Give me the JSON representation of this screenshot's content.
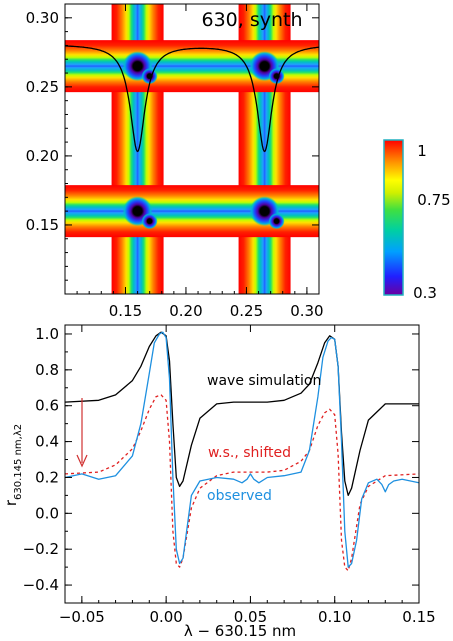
{
  "top_panel": {
    "label": "630, synth",
    "x_ticks": [
      "0.15",
      "0.20",
      "0.25",
      "0.30"
    ],
    "y_ticks": [
      "0.15",
      "0.20",
      "0.25",
      "0.30"
    ],
    "xlim": [
      0.1,
      0.31
    ],
    "ylim": [
      0.1,
      0.31
    ],
    "line_centers": [
      0.16,
      0.265
    ],
    "colors": {
      "red": "#ff0000",
      "yellow": "#ffff00",
      "green": "#00c080",
      "blue": "#2020ff",
      "black": "#000000"
    }
  },
  "colorbar": {
    "ticks": [
      "1",
      "0.75",
      "0.3"
    ],
    "range": [
      0.3,
      1.0
    ]
  },
  "chart_data": {
    "type": "line",
    "xlabel": "λ − 630.15 nm",
    "ylabel": "r",
    "ylabel_sub": "630.145 nm,λ2",
    "xlim": [
      -0.06,
      0.15
    ],
    "ylim": [
      -0.5,
      1.05
    ],
    "x_ticks": [
      "−0.05",
      "0.00",
      "0.05",
      "0.10",
      "0.15"
    ],
    "y_ticks": [
      "1.0",
      "0.8",
      "0.6",
      "0.4",
      "0.2",
      "0.0",
      "−0.2",
      "−0.4"
    ],
    "annotations": {
      "wave_simulation": "wave simulation",
      "shifted": "w.s., shifted",
      "observed": "observed"
    },
    "series": [
      {
        "name": "wave simulation",
        "color": "#000000",
        "dash": "solid",
        "x": [
          -0.06,
          -0.04,
          -0.03,
          -0.02,
          -0.015,
          -0.01,
          -0.006,
          -0.003,
          0.0,
          0.002,
          0.004,
          0.006,
          0.008,
          0.01,
          0.015,
          0.02,
          0.03,
          0.04,
          0.05,
          0.06,
          0.07,
          0.08,
          0.085,
          0.09,
          0.094,
          0.097,
          0.1,
          0.102,
          0.104,
          0.106,
          0.108,
          0.11,
          0.115,
          0.12,
          0.13,
          0.15
        ],
        "y": [
          0.62,
          0.63,
          0.66,
          0.74,
          0.82,
          0.93,
          0.99,
          1.01,
          0.99,
          0.85,
          0.5,
          0.2,
          0.15,
          0.18,
          0.38,
          0.53,
          0.61,
          0.62,
          0.62,
          0.62,
          0.63,
          0.67,
          0.72,
          0.84,
          0.95,
          0.99,
          0.97,
          0.82,
          0.45,
          0.18,
          0.1,
          0.14,
          0.35,
          0.52,
          0.61,
          0.61
        ]
      },
      {
        "name": "w.s., shifted",
        "color": "#e02020",
        "dash": "dashed",
        "x": [
          -0.06,
          -0.04,
          -0.03,
          -0.02,
          -0.015,
          -0.01,
          -0.006,
          -0.003,
          0.0,
          0.002,
          0.004,
          0.006,
          0.008,
          0.01,
          0.015,
          0.02,
          0.03,
          0.04,
          0.05,
          0.06,
          0.07,
          0.08,
          0.085,
          0.09,
          0.094,
          0.097,
          0.1,
          0.102,
          0.104,
          0.106,
          0.108,
          0.11,
          0.115,
          0.12,
          0.13,
          0.15
        ],
        "y": [
          0.22,
          0.23,
          0.27,
          0.36,
          0.46,
          0.58,
          0.65,
          0.66,
          0.63,
          0.4,
          -0.1,
          -0.28,
          -0.3,
          -0.25,
          0.03,
          0.14,
          0.21,
          0.23,
          0.23,
          0.23,
          0.24,
          0.29,
          0.35,
          0.49,
          0.56,
          0.58,
          0.55,
          0.33,
          -0.15,
          -0.3,
          -0.32,
          -0.25,
          0.05,
          0.15,
          0.21,
          0.22
        ]
      },
      {
        "name": "observed",
        "color": "#1e90e0",
        "dash": "solid",
        "x": [
          -0.06,
          -0.05,
          -0.04,
          -0.03,
          -0.02,
          -0.015,
          -0.01,
          -0.007,
          -0.004,
          -0.002,
          0.0,
          0.002,
          0.004,
          0.006,
          0.008,
          0.01,
          0.015,
          0.02,
          0.03,
          0.04,
          0.045,
          0.048,
          0.05,
          0.052,
          0.055,
          0.06,
          0.07,
          0.08,
          0.085,
          0.09,
          0.093,
          0.096,
          0.098,
          0.1,
          0.102,
          0.104,
          0.106,
          0.108,
          0.11,
          0.113,
          0.116,
          0.12,
          0.125,
          0.128,
          0.13,
          0.132,
          0.135,
          0.14,
          0.15
        ],
        "y": [
          0.2,
          0.22,
          0.19,
          0.21,
          0.32,
          0.5,
          0.78,
          0.95,
          1.0,
          1.01,
          0.98,
          0.75,
          0.2,
          -0.2,
          -0.28,
          -0.25,
          0.1,
          0.18,
          0.2,
          0.19,
          0.17,
          0.19,
          0.22,
          0.19,
          0.17,
          0.2,
          0.21,
          0.23,
          0.35,
          0.65,
          0.87,
          0.96,
          0.98,
          0.97,
          0.82,
          0.4,
          -0.1,
          -0.3,
          -0.28,
          -0.15,
          0.08,
          0.17,
          0.19,
          0.16,
          0.12,
          0.16,
          0.18,
          0.19,
          0.17
        ]
      }
    ]
  }
}
